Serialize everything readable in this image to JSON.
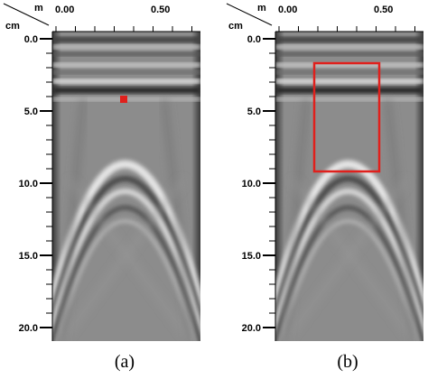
{
  "panels": [
    {
      "caption": "(a)",
      "x_unit": "m",
      "y_unit": "cm",
      "x_ticks": [
        "0.00",
        "0.50"
      ],
      "y_ticks": [
        "0.0",
        "5.0",
        "10.0",
        "15.0",
        "20.0"
      ]
    },
    {
      "caption": "(b)",
      "x_unit": "m",
      "y_unit": "cm",
      "x_ticks": [
        "0.00",
        "0.50"
      ],
      "y_ticks": [
        "0.0",
        "5.0",
        "10.0",
        "15.0",
        "20.0"
      ]
    }
  ]
}
